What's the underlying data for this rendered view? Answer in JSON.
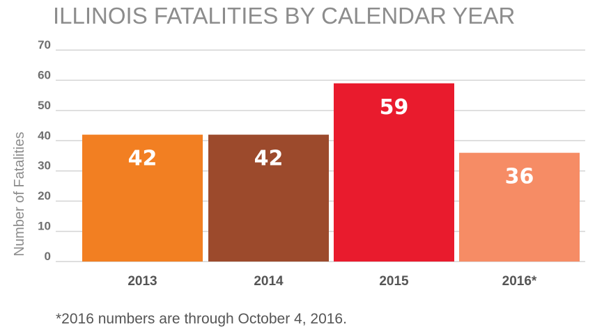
{
  "chart_data": {
    "type": "bar",
    "title": "ILLINOIS FATALITIES BY CALENDAR YEAR",
    "xlabel": "",
    "ylabel": "Number of Fatalities",
    "categories": [
      "2013",
      "2014",
      "2015",
      "2016*"
    ],
    "values": [
      42,
      42,
      59,
      36
    ],
    "value_labels": [
      "42",
      "42",
      "59",
      "36"
    ],
    "colors": [
      "#f27f22",
      "#9c4a2c",
      "#e91b2d",
      "#f68c65"
    ],
    "ylim": [
      0,
      70
    ],
    "yticks": [
      0,
      10,
      20,
      30,
      40,
      50,
      60,
      70
    ],
    "grid": true,
    "footnote": "*2016 numbers are through October 4, 2016."
  }
}
